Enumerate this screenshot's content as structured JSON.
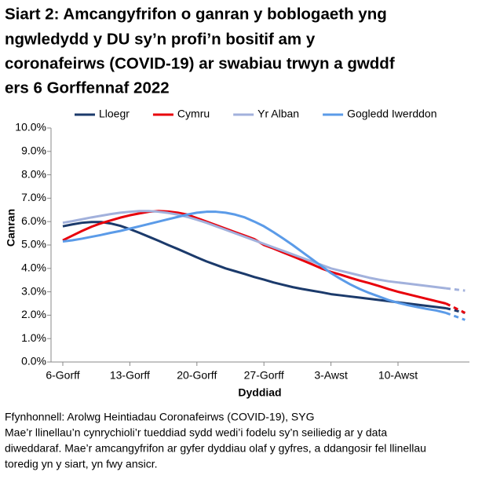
{
  "chart_data": {
    "type": "line",
    "title": [
      "Siart 2: Amcangyfrifon o ganran y boblogaeth yng",
      "ngwledydd y DU sy’n profi’n bositif am y",
      "coronafeirws (COVID-19) ar swabiau trwyn a gwddf",
      "ers 6 Gorffennaf 2022"
    ],
    "x_label": "Dyddiad",
    "y_label": "Canran",
    "categories": [
      "6-Gorff",
      null,
      null,
      null,
      null,
      null,
      null,
      "13-Gorff",
      null,
      null,
      null,
      null,
      null,
      null,
      "20-Gorff",
      null,
      null,
      null,
      null,
      null,
      null,
      "27-Gorff",
      null,
      null,
      null,
      null,
      null,
      null,
      "3-Awst",
      null,
      null,
      null,
      null,
      null,
      null,
      "10-Awst",
      null,
      null,
      null,
      null,
      null,
      null,
      null
    ],
    "ylim": [
      0,
      10
    ],
    "yticks": [
      {
        "value": 0,
        "label": "0.0%"
      },
      {
        "value": 1,
        "label": "1.0%"
      },
      {
        "value": 2,
        "label": "2.0%"
      },
      {
        "value": 3,
        "label": "3.0%"
      },
      {
        "value": 4,
        "label": "4.0%"
      },
      {
        "value": 5,
        "label": "5.0%"
      },
      {
        "value": 6,
        "label": "6.0%"
      },
      {
        "value": 7,
        "label": "7.0%"
      },
      {
        "value": 8,
        "label": "8.0%"
      },
      {
        "value": 9,
        "label": "9.0%"
      },
      {
        "value": 10,
        "label": "10.0%"
      }
    ],
    "grid": false,
    "series": [
      {
        "name": "Lloegr",
        "color": "#1b3a6b",
        "values": [
          5.8,
          5.88,
          5.95,
          5.98,
          5.98,
          5.92,
          5.82,
          5.68,
          5.52,
          5.35,
          5.18,
          5.0,
          4.83,
          4.65,
          4.47,
          4.3,
          4.15,
          4.0,
          3.88,
          3.76,
          3.63,
          3.52,
          3.4,
          3.3,
          3.2,
          3.12,
          3.05,
          2.98,
          2.9,
          2.85,
          2.8,
          2.75,
          2.7,
          2.65,
          2.6,
          2.55,
          2.5,
          2.45,
          2.4,
          2.35,
          2.3,
          null,
          null
        ],
        "projection": [
          null,
          null,
          null,
          null,
          null,
          null,
          null,
          null,
          null,
          null,
          null,
          null,
          null,
          null,
          null,
          null,
          null,
          null,
          null,
          null,
          null,
          null,
          null,
          null,
          null,
          null,
          null,
          null,
          null,
          null,
          null,
          null,
          null,
          null,
          null,
          null,
          null,
          null,
          null,
          null,
          null,
          2.2,
          2.1
        ]
      },
      {
        "name": "Cymru",
        "color": "#e8000b",
        "values": [
          5.2,
          5.4,
          5.6,
          5.78,
          5.93,
          6.05,
          6.17,
          6.27,
          6.35,
          6.42,
          6.45,
          6.43,
          6.38,
          6.3,
          6.15,
          6.0,
          5.85,
          5.7,
          5.55,
          5.4,
          5.25,
          5.0,
          4.85,
          4.68,
          4.52,
          4.35,
          4.18,
          4.0,
          3.85,
          3.73,
          3.6,
          3.48,
          3.37,
          3.25,
          3.12,
          3.0,
          2.9,
          2.8,
          2.7,
          2.6,
          2.5,
          null,
          null
        ],
        "projection": [
          null,
          null,
          null,
          null,
          null,
          null,
          null,
          null,
          null,
          null,
          null,
          null,
          null,
          null,
          null,
          null,
          null,
          null,
          null,
          null,
          null,
          null,
          null,
          null,
          null,
          null,
          null,
          null,
          null,
          null,
          null,
          null,
          null,
          null,
          null,
          null,
          null,
          null,
          null,
          null,
          null,
          2.3,
          2.1
        ]
      },
      {
        "name": "Yr Alban",
        "color": "#a2b1dc",
        "values": [
          5.95,
          6.02,
          6.1,
          6.18,
          6.25,
          6.32,
          6.38,
          6.42,
          6.45,
          6.45,
          6.42,
          6.37,
          6.3,
          6.2,
          6.08,
          5.95,
          5.8,
          5.65,
          5.5,
          5.35,
          5.2,
          5.05,
          4.9,
          4.75,
          4.6,
          4.45,
          4.3,
          4.15,
          4.0,
          3.9,
          3.8,
          3.7,
          3.6,
          3.52,
          3.45,
          3.4,
          3.35,
          3.3,
          3.25,
          3.2,
          3.15,
          null,
          null
        ],
        "projection": [
          null,
          null,
          null,
          null,
          null,
          null,
          null,
          null,
          null,
          null,
          null,
          null,
          null,
          null,
          null,
          null,
          null,
          null,
          null,
          null,
          null,
          null,
          null,
          null,
          null,
          null,
          null,
          null,
          null,
          null,
          null,
          null,
          null,
          null,
          null,
          null,
          null,
          null,
          null,
          null,
          null,
          3.1,
          3.05
        ]
      },
      {
        "name": "Gogledd Iwerddon",
        "color": "#5b9be8",
        "values": [
          5.15,
          5.2,
          5.27,
          5.35,
          5.43,
          5.52,
          5.6,
          5.7,
          5.8,
          5.9,
          6.0,
          6.1,
          6.2,
          6.3,
          6.38,
          6.42,
          6.42,
          6.38,
          6.3,
          6.18,
          6.0,
          5.8,
          5.55,
          5.28,
          5.0,
          4.7,
          4.4,
          4.1,
          3.8,
          3.55,
          3.32,
          3.12,
          2.95,
          2.8,
          2.65,
          2.53,
          2.43,
          2.35,
          2.27,
          2.2,
          2.1,
          null,
          null
        ],
        "projection": [
          null,
          null,
          null,
          null,
          null,
          null,
          null,
          null,
          null,
          null,
          null,
          null,
          null,
          null,
          null,
          null,
          null,
          null,
          null,
          null,
          null,
          null,
          null,
          null,
          null,
          null,
          null,
          null,
          null,
          null,
          null,
          null,
          null,
          null,
          null,
          null,
          null,
          null,
          null,
          null,
          null,
          1.95,
          1.8
        ]
      }
    ],
    "notes": [
      "Ffynhonnell: Arolwg Heintiadau Coronafeirws (COVID-19), SYG",
      "Mae’r llinellau’n cynrychioli’r tueddiad sydd wedi’i fodelu sy’n seiliedig ar y data",
      "diweddaraf. Mae’r amcangyfrifon ar gyfer dyddiau olaf y gyfres, a ddangosir fel llinellau",
      "toredig yn y siart, yn fwy ansicr."
    ]
  }
}
